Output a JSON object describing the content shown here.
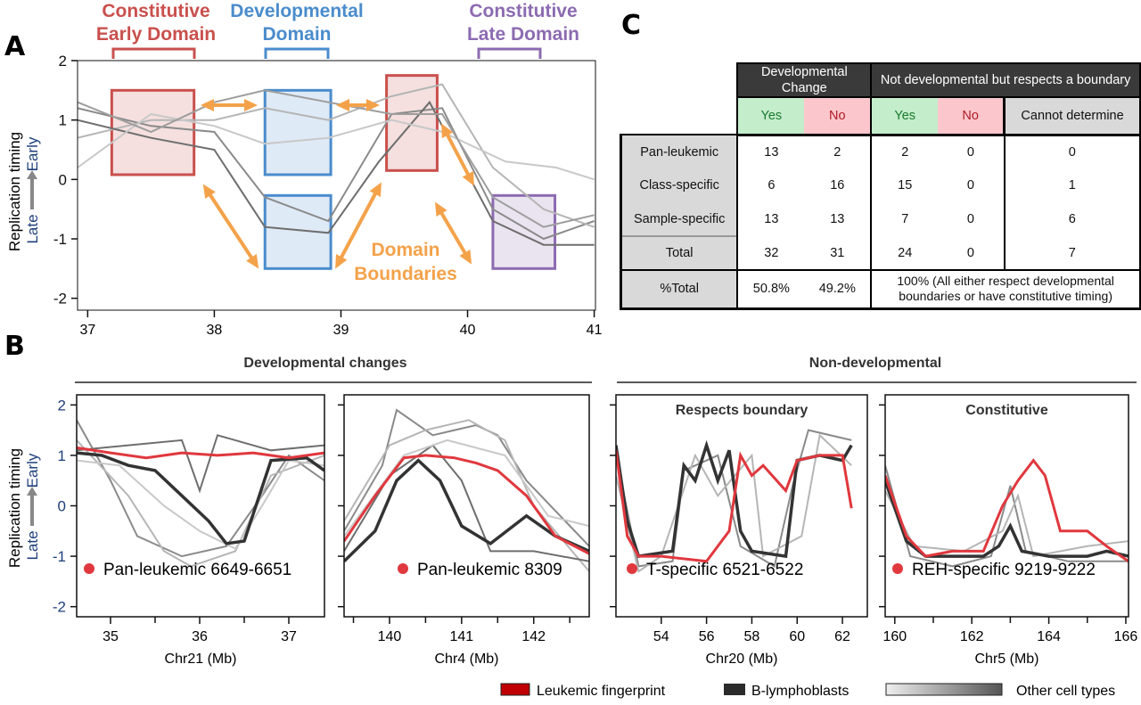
{
  "panel_labels": {
    "a": "A",
    "b": "B",
    "c": "C"
  },
  "colors": {
    "red": "#e0383e",
    "black": "#333333",
    "gray": "#999999",
    "orange": "#f4a24a",
    "early_domain": "#c9504d",
    "developmental": "#4a8ccc",
    "late_domain": "#8c6bb1",
    "axis_blue": "#1f3f7a"
  },
  "y_axis": {
    "title": "Replication timing",
    "late": "Late",
    "early": "Early"
  },
  "panel_a": {
    "headers": [
      {
        "text": [
          "Constitutive",
          "Early Domain"
        ],
        "color": "#c9504d"
      },
      {
        "text": [
          "Developmental",
          "Domain"
        ],
        "color": "#4a8ccc"
      },
      {
        "text": [
          "Constitutive",
          "Late Domain"
        ],
        "color": "#8c6bb1"
      }
    ],
    "annotation": [
      "Domain",
      "Boundaries"
    ]
  },
  "panel_b": {
    "section_left": "Developmental changes",
    "section_right": "Non-developmental"
  },
  "legend": {
    "leukemic": "Leukemic fingerprint",
    "b_lymph": "B-lymphoblasts",
    "other": "Other cell types"
  },
  "table_c": {
    "group_headers": [
      "Developmental Change",
      "Not developmental but respects a boundary"
    ],
    "sub_headers": [
      "Yes",
      "No",
      "Yes",
      "No",
      "Cannot determine"
    ],
    "rows": [
      {
        "label": "Pan-leukemic",
        "values": [
          "13",
          "2",
          "2",
          "0",
          "0"
        ]
      },
      {
        "label": "Class-specific",
        "values": [
          "6",
          "16",
          "15",
          "0",
          "1"
        ]
      },
      {
        "label": "Sample-specific",
        "values": [
          "13",
          "13",
          "7",
          "0",
          "6"
        ]
      },
      {
        "label": "Total",
        "values": [
          "32",
          "31",
          "24",
          "0",
          "7"
        ]
      }
    ],
    "pct_label": "%Total",
    "pct_values": [
      "50.8%",
      "49.2%"
    ],
    "pct_note": "100% (All either respect developmental boundaries or have constitutive timing)"
  },
  "chart_data": [
    {
      "type": "line",
      "panel": "A",
      "xlim": [
        36.92,
        41.01
      ],
      "ylim": [
        -2.2,
        2.0
      ],
      "xticks": [
        37,
        38,
        39,
        40,
        41
      ],
      "yticks": [
        -2,
        -1,
        0,
        1,
        2
      ],
      "domains": [
        {
          "kind": "early",
          "x": [
            37.19,
            37.84
          ],
          "y": [
            0.08,
            1.5
          ]
        },
        {
          "kind": "developmental",
          "x": [
            38.4,
            38.92
          ],
          "y": [
            0.08,
            1.5
          ]
        },
        {
          "kind": "developmental",
          "x": [
            38.4,
            38.92
          ],
          "y": [
            -1.5,
            -0.27
          ]
        },
        {
          "kind": "early",
          "x": [
            39.36,
            39.76
          ],
          "y": [
            0.15,
            1.75
          ]
        },
        {
          "kind": "late",
          "x": [
            40.2,
            40.69
          ],
          "y": [
            -1.5,
            -0.27
          ]
        }
      ],
      "gray": [
        [
          [
            36.92,
            1.2
          ],
          [
            37.5,
            0.9
          ],
          [
            38,
            0.8
          ],
          [
            38.4,
            -0.3
          ],
          [
            38.9,
            -0.7
          ],
          [
            39.4,
            1.1
          ],
          [
            39.8,
            1.2
          ],
          [
            40.2,
            -0.5
          ],
          [
            40.6,
            -1.0
          ],
          [
            41,
            -0.7
          ]
        ],
        [
          [
            36.92,
            0.7
          ],
          [
            37.5,
            1.0
          ],
          [
            38,
            1.0
          ],
          [
            38.4,
            1.2
          ],
          [
            38.9,
            1.0
          ],
          [
            39.4,
            1.4
          ],
          [
            39.8,
            1.6
          ],
          [
            40.2,
            0.2
          ],
          [
            40.6,
            -0.5
          ],
          [
            41,
            -0.8
          ]
        ],
        [
          [
            36.92,
            1.0
          ],
          [
            37.5,
            0.7
          ],
          [
            38,
            0.5
          ],
          [
            38.4,
            -0.8
          ],
          [
            38.9,
            -0.9
          ],
          [
            39.3,
            0.3
          ],
          [
            39.7,
            1.3
          ],
          [
            40.2,
            -0.7
          ],
          [
            40.6,
            -1.1
          ],
          [
            41,
            -1.1
          ]
        ],
        [
          [
            36.92,
            0.2
          ],
          [
            37.5,
            1.1
          ],
          [
            38,
            0.9
          ],
          [
            38.4,
            0.6
          ],
          [
            38.9,
            0.7
          ],
          [
            39.4,
            1.0
          ],
          [
            39.8,
            0.8
          ],
          [
            40.3,
            0.3
          ],
          [
            40.7,
            0.2
          ],
          [
            41,
            0.0
          ]
        ],
        [
          [
            36.92,
            1.3
          ],
          [
            37.5,
            0.8
          ],
          [
            38,
            1.3
          ],
          [
            38.4,
            1.5
          ],
          [
            38.9,
            1.3
          ],
          [
            39.4,
            1.1
          ],
          [
            39.8,
            1.1
          ],
          [
            40.2,
            -0.3
          ],
          [
            40.6,
            -0.8
          ],
          [
            41,
            -0.6
          ]
        ]
      ]
    },
    {
      "type": "line",
      "panel": "B1",
      "xlabel": "Chr21 (Mb)",
      "label": "Pan-leukemic 6649-6651",
      "xlim": [
        34.62,
        37.4
      ],
      "ylim": [
        -2.2,
        2.2
      ],
      "xticks": [
        35,
        36,
        37
      ],
      "minor": [
        35.5,
        36.5
      ],
      "yticks": [
        -2,
        -1,
        0,
        1,
        2
      ],
      "red": [
        [
          34.62,
          1.15
        ],
        [
          35,
          1.05
        ],
        [
          35.4,
          0.95
        ],
        [
          35.8,
          1.05
        ],
        [
          36.2,
          1.0
        ],
        [
          36.6,
          1.05
        ],
        [
          37,
          0.95
        ],
        [
          37.4,
          1.05
        ]
      ],
      "black": [
        [
          34.62,
          1.05
        ],
        [
          34.9,
          1.0
        ],
        [
          35.2,
          0.8
        ],
        [
          35.5,
          0.7
        ],
        [
          35.8,
          0.2
        ],
        [
          36.1,
          -0.3
        ],
        [
          36.3,
          -0.75
        ],
        [
          36.5,
          -0.7
        ],
        [
          36.8,
          0.9
        ],
        [
          37.2,
          0.95
        ],
        [
          37.4,
          0.7
        ]
      ],
      "gray": [
        [
          [
            34.62,
            1.7
          ],
          [
            35,
            0.5
          ],
          [
            35.3,
            -0.6
          ],
          [
            35.8,
            -1.0
          ],
          [
            36.3,
            -0.8
          ],
          [
            36.7,
            0.2
          ],
          [
            37,
            1.0
          ],
          [
            37.4,
            0.5
          ]
        ],
        [
          [
            34.62,
            1.3
          ],
          [
            35.2,
            0.2
          ],
          [
            35.6,
            -0.9
          ],
          [
            35.9,
            -1.2
          ],
          [
            36.4,
            -0.9
          ],
          [
            36.8,
            0.6
          ],
          [
            37.4,
            1.0
          ]
        ],
        [
          [
            34.62,
            1.1
          ],
          [
            35.2,
            1.2
          ],
          [
            35.8,
            1.3
          ],
          [
            36,
            0.3
          ],
          [
            36.2,
            1.4
          ],
          [
            36.8,
            1.1
          ],
          [
            37.4,
            1.2
          ]
        ],
        [
          [
            34.62,
            0.9
          ],
          [
            35.1,
            0.8
          ],
          [
            35.6,
            0.0
          ],
          [
            36.0,
            -0.5
          ],
          [
            36.4,
            -0.85
          ],
          [
            36.7,
            0.0
          ],
          [
            37.0,
            0.9
          ],
          [
            37.4,
            0.8
          ]
        ]
      ]
    },
    {
      "type": "line",
      "panel": "B2",
      "xlabel": "Chr4 (Mb)",
      "label": "Pan-leukemic 8309",
      "xlim": [
        139.37,
        142.77
      ],
      "ylim": [
        -2.2,
        2.2
      ],
      "xticks": [
        140,
        141,
        142
      ],
      "minor": [
        139.5,
        140.5,
        141.5,
        142.5
      ],
      "yticks": [
        -2,
        -1,
        0,
        1,
        2
      ],
      "red": [
        [
          139.37,
          -0.7
        ],
        [
          139.8,
          0.2
        ],
        [
          140.2,
          0.95
        ],
        [
          140.5,
          1.0
        ],
        [
          140.9,
          0.95
        ],
        [
          141.2,
          0.85
        ],
        [
          141.5,
          0.7
        ],
        [
          141.9,
          0.2
        ],
        [
          142.3,
          -0.6
        ],
        [
          142.77,
          -0.95
        ]
      ],
      "black": [
        [
          139.37,
          -1.1
        ],
        [
          139.8,
          -0.5
        ],
        [
          140.1,
          0.5
        ],
        [
          140.4,
          0.9
        ],
        [
          140.7,
          0.5
        ],
        [
          141.0,
          -0.4
        ],
        [
          141.4,
          -0.75
        ],
        [
          141.9,
          -0.2
        ],
        [
          142.3,
          -0.6
        ],
        [
          142.77,
          -0.9
        ]
      ],
      "gray": [
        [
          [
            139.37,
            -0.5
          ],
          [
            139.9,
            0.8
          ],
          [
            140.1,
            1.9
          ],
          [
            140.6,
            1.4
          ],
          [
            141.2,
            1.6
          ],
          [
            141.5,
            1.4
          ],
          [
            141.9,
            0.5
          ],
          [
            142.77,
            -0.8
          ]
        ],
        [
          [
            139.37,
            -0.3
          ],
          [
            140.0,
            1.2
          ],
          [
            140.5,
            1.5
          ],
          [
            141.1,
            1.7
          ],
          [
            141.6,
            1.3
          ],
          [
            142.0,
            0.0
          ],
          [
            142.77,
            -1.3
          ]
        ],
        [
          [
            139.37,
            -0.9
          ],
          [
            140.0,
            0.6
          ],
          [
            140.6,
            1.2
          ],
          [
            141.0,
            0.5
          ],
          [
            141.4,
            -0.9
          ],
          [
            142.0,
            -0.9
          ],
          [
            142.77,
            -1.1
          ]
        ],
        [
          [
            139.37,
            -0.6
          ],
          [
            140.2,
            1.0
          ],
          [
            140.8,
            1.3
          ],
          [
            141.6,
            1.0
          ],
          [
            142.2,
            -0.2
          ],
          [
            142.77,
            -0.4
          ]
        ]
      ]
    },
    {
      "type": "line",
      "panel": "B3",
      "title": "Respects boundary",
      "xlabel": "Chr20 (Mb)",
      "label": "T-specific 6521-6522",
      "xlim": [
        52.0,
        63.1
      ],
      "ylim": [
        -2.2,
        2.2
      ],
      "xticks": [
        54,
        56,
        58,
        60,
        62
      ],
      "minor": [],
      "yticks": [
        -2,
        -1,
        0,
        1,
        2
      ],
      "red": [
        [
          52,
          1.1
        ],
        [
          52.5,
          -0.6
        ],
        [
          53,
          -1.0
        ],
        [
          54,
          -1.0
        ],
        [
          56,
          -1.1
        ],
        [
          57,
          -0.5
        ],
        [
          57.5,
          1.0
        ],
        [
          58,
          0.6
        ],
        [
          58.5,
          0.8
        ],
        [
          59.5,
          0.3
        ],
        [
          60,
          0.9
        ],
        [
          61,
          1.0
        ],
        [
          62,
          1.0
        ],
        [
          62.4,
          -0.05
        ]
      ],
      "black": [
        [
          52,
          1.2
        ],
        [
          52.5,
          -0.3
        ],
        [
          53,
          -1.0
        ],
        [
          54.5,
          -0.9
        ],
        [
          55,
          0.8
        ],
        [
          55.5,
          0.5
        ],
        [
          56,
          1.2
        ],
        [
          56.5,
          0.5
        ],
        [
          57,
          1.1
        ],
        [
          57.5,
          -0.5
        ],
        [
          58,
          -0.9
        ],
        [
          59.5,
          -1.0
        ],
        [
          60,
          0.9
        ],
        [
          61,
          1.0
        ],
        [
          62,
          0.9
        ],
        [
          62.4,
          1.2
        ]
      ],
      "gray": [
        [
          [
            52,
            1.0
          ],
          [
            53,
            -1.2
          ],
          [
            54.5,
            -1.1
          ],
          [
            55,
            0.7
          ],
          [
            56.5,
            1.0
          ],
          [
            57.5,
            -0.8
          ],
          [
            59,
            -1.2
          ],
          [
            59.8,
            0.4
          ],
          [
            60.5,
            1.5
          ],
          [
            62.4,
            1.3
          ]
        ],
        [
          [
            52,
            0.6
          ],
          [
            53,
            -1.3
          ],
          [
            54,
            -1.0
          ],
          [
            55.5,
            1.0
          ],
          [
            56.5,
            0.2
          ],
          [
            58,
            1.0
          ],
          [
            58.5,
            -1.0
          ],
          [
            60.2,
            -0.6
          ],
          [
            61,
            1.4
          ],
          [
            62.4,
            0.8
          ]
        ]
      ]
    },
    {
      "type": "line",
      "panel": "B4",
      "title": "Constitutive",
      "xlabel": "Chr5 (Mb)",
      "label": "REH-specific 9219-9222",
      "xlim": [
        159.75,
        166.07
      ],
      "ylim": [
        -2.2,
        2.2
      ],
      "xticks": [
        160,
        162,
        164,
        166
      ],
      "minor": [
        161,
        163,
        165
      ],
      "yticks": [
        -2,
        -1,
        0,
        1,
        2
      ],
      "red": [
        [
          159.75,
          0.6
        ],
        [
          160.3,
          -0.6
        ],
        [
          160.8,
          -1.0
        ],
        [
          161.5,
          -0.9
        ],
        [
          162.3,
          -0.9
        ],
        [
          162.8,
          0.0
        ],
        [
          163.2,
          0.5
        ],
        [
          163.6,
          0.9
        ],
        [
          163.9,
          0.6
        ],
        [
          164.3,
          -0.5
        ],
        [
          165,
          -0.5
        ],
        [
          165.5,
          -0.8
        ],
        [
          166.07,
          -1.1
        ]
      ],
      "black": [
        [
          159.75,
          0.5
        ],
        [
          160.3,
          -0.7
        ],
        [
          160.8,
          -1.0
        ],
        [
          161.5,
          -1.0
        ],
        [
          162.3,
          -1.0
        ],
        [
          162.7,
          -0.8
        ],
        [
          163,
          -0.4
        ],
        [
          163.3,
          -0.9
        ],
        [
          164,
          -1.0
        ],
        [
          165,
          -1.0
        ],
        [
          165.5,
          -0.9
        ],
        [
          166.07,
          -1.0
        ]
      ],
      "gray": [
        [
          [
            159.75,
            0.8
          ],
          [
            160.4,
            -1.0
          ],
          [
            161.5,
            -1.2
          ],
          [
            162.5,
            -1.0
          ],
          [
            163,
            0.4
          ],
          [
            163.4,
            -0.9
          ],
          [
            164.5,
            -1.1
          ],
          [
            166.07,
            -1.1
          ]
        ],
        [
          [
            159.75,
            0.3
          ],
          [
            160.5,
            -0.8
          ],
          [
            161.8,
            -0.9
          ],
          [
            162.8,
            -0.5
          ],
          [
            163.2,
            0.2
          ],
          [
            163.6,
            -1.0
          ],
          [
            165,
            -0.8
          ],
          [
            166.07,
            -0.7
          ]
        ]
      ]
    }
  ]
}
